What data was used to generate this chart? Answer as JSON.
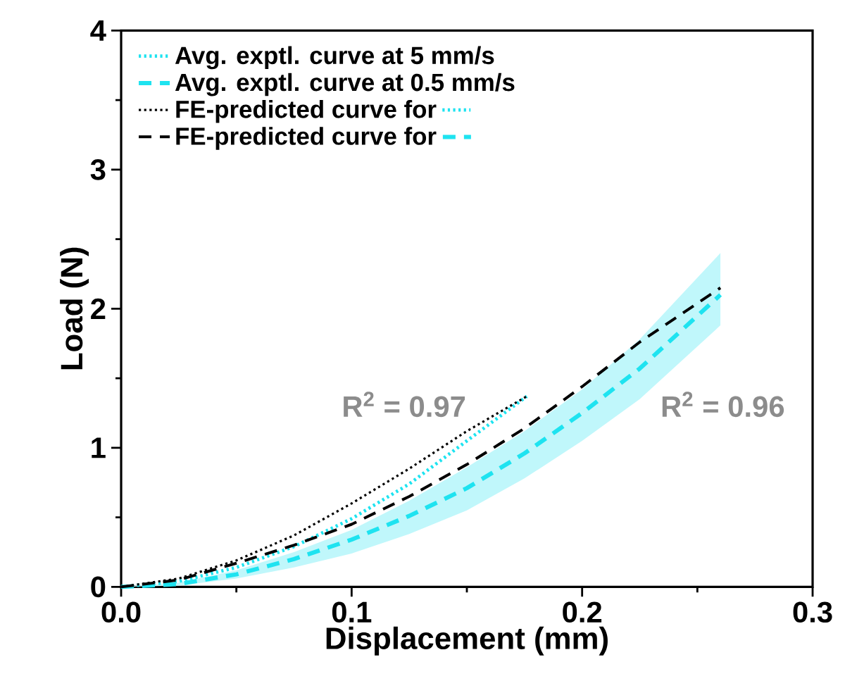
{
  "chart_data": {
    "type": "line",
    "xlabel": "Displacement (mm)",
    "ylabel": "Load (N)",
    "xlim": [
      0,
      0.3
    ],
    "ylim": [
      0,
      4
    ],
    "xticks": [
      {
        "value": 0,
        "label": "0.0"
      },
      0.1,
      0.2,
      0.3
    ],
    "yticks": [
      0,
      1,
      2,
      3,
      4
    ],
    "legend": "top left",
    "grid": false,
    "series": [
      {
        "name": "Avg. exptl. curve at 5 mm/s",
        "color": "#1ee3f0",
        "line_style": "dotted",
        "x": [
          0,
          0.025,
          0.05,
          0.075,
          0.1,
          0.125,
          0.15,
          0.176
        ],
        "values": [
          0,
          0.04,
          0.14,
          0.29,
          0.49,
          0.74,
          1.05,
          1.37
        ]
      },
      {
        "name": "Avg. exptl. curve at 0.5 mm/s",
        "color": "#1ee3f0",
        "line_style": "dashed",
        "x": [
          0,
          0.025,
          0.05,
          0.075,
          0.1,
          0.125,
          0.15,
          0.175,
          0.2,
          0.225,
          0.26
        ],
        "values": [
          0,
          0.02,
          0.09,
          0.2,
          0.34,
          0.51,
          0.71,
          0.96,
          1.25,
          1.57,
          2.1
        ],
        "lower": [
          0,
          0.01,
          0.06,
          0.14,
          0.24,
          0.38,
          0.55,
          0.78,
          1.05,
          1.35,
          1.88
        ],
        "upper": [
          0,
          0.03,
          0.12,
          0.25,
          0.41,
          0.62,
          0.86,
          1.12,
          1.42,
          1.78,
          2.4
        ]
      },
      {
        "name": "FE-predicted curve for",
        "color": "#000000",
        "line_style": "dotted",
        "x": [
          0,
          0.025,
          0.05,
          0.075,
          0.1,
          0.125,
          0.15,
          0.176
        ],
        "values": [
          0,
          0.06,
          0.19,
          0.37,
          0.6,
          0.85,
          1.12,
          1.37
        ]
      },
      {
        "name": "FE-predicted curve for",
        "color": "#000000",
        "line_style": "dashed",
        "x": [
          0,
          0.025,
          0.05,
          0.075,
          0.1,
          0.125,
          0.15,
          0.175,
          0.2,
          0.225,
          0.26
        ],
        "values": [
          0,
          0.05,
          0.17,
          0.3,
          0.45,
          0.65,
          0.88,
          1.14,
          1.44,
          1.76,
          2.15
        ]
      }
    ],
    "annotations": [
      "R$^{2}$ = 0.97",
      "R$^{2}$ = 0.96"
    ]
  }
}
